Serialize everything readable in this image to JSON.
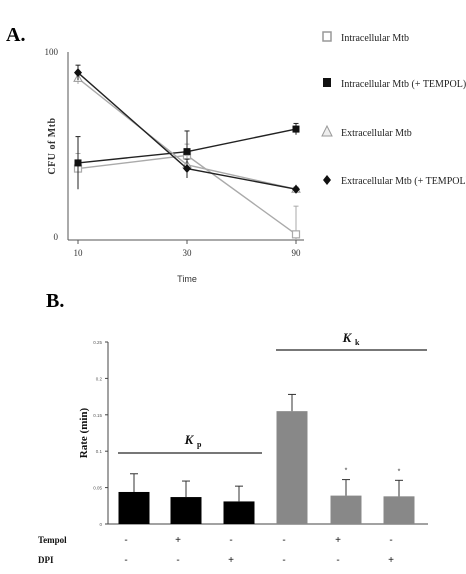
{
  "figure": {
    "panel_a_label": "A.",
    "panel_b_label": "B."
  },
  "chart_data": [
    {
      "type": "line",
      "panel": "A",
      "xlabel": "Time",
      "ylabel": "CFU of Mtb",
      "x": [
        10,
        30,
        90
      ],
      "ylim": [
        0,
        100
      ],
      "ytick_labels": [
        "0",
        "100"
      ],
      "xtick_labels": [
        "10",
        "30",
        "90"
      ],
      "series": [
        {
          "name": "Intracellular Mtb",
          "marker": "open-square",
          "color": "#aaaaaa",
          "values": [
            38,
            45,
            3
          ],
          "errors": [
            8,
            6,
            15
          ]
        },
        {
          "name": "Intracellular Mtb (+ TEMPOL)",
          "marker": "filled-square",
          "color": "#222222",
          "values": [
            41,
            47,
            59
          ],
          "errors": [
            14,
            11,
            3
          ]
        },
        {
          "name": "Extracellular Mtb",
          "marker": "open-triangle",
          "color": "#aaaaaa",
          "values": [
            86,
            40,
            27
          ],
          "errors": [
            3,
            5,
            1
          ]
        },
        {
          "name": "Extracellular Mtb (+ TEMPOL)",
          "marker": "filled-diamond",
          "color": "#222222",
          "values": [
            89,
            38,
            27
          ],
          "errors": [
            4,
            5,
            1
          ]
        }
      ],
      "legend_position": "right"
    },
    {
      "type": "bar",
      "panel": "B",
      "ylabel": "Rate (min)",
      "ylim": [
        0,
        0.25
      ],
      "ytick_labels": [
        "0",
        "0.05",
        "0.1",
        "0.15",
        "0.2",
        "0.25"
      ],
      "values": [
        0.044,
        0.037,
        0.031,
        0.155,
        0.039,
        0.038
      ],
      "errors": [
        0.025,
        0.022,
        0.021,
        0.023,
        0.022,
        0.022
      ],
      "bar_colors": [
        "#000000",
        "#000000",
        "#000000",
        "#888888",
        "#888888",
        "#888888"
      ],
      "asterisks": [
        "",
        "",
        "",
        "",
        "*",
        "*"
      ],
      "groups": [
        {
          "label": "K",
          "sub": "p",
          "bar_indices": [
            0,
            1,
            2
          ]
        },
        {
          "label": "K",
          "sub": "k",
          "bar_indices": [
            3,
            4,
            5
          ]
        }
      ],
      "conditions": [
        {
          "label": "Tempol",
          "signs": [
            "-",
            "+",
            "-",
            "-",
            "+",
            "-"
          ]
        },
        {
          "label": "DPI",
          "signs": [
            "-",
            "-",
            "+",
            "-",
            "-",
            "+"
          ]
        }
      ]
    }
  ]
}
